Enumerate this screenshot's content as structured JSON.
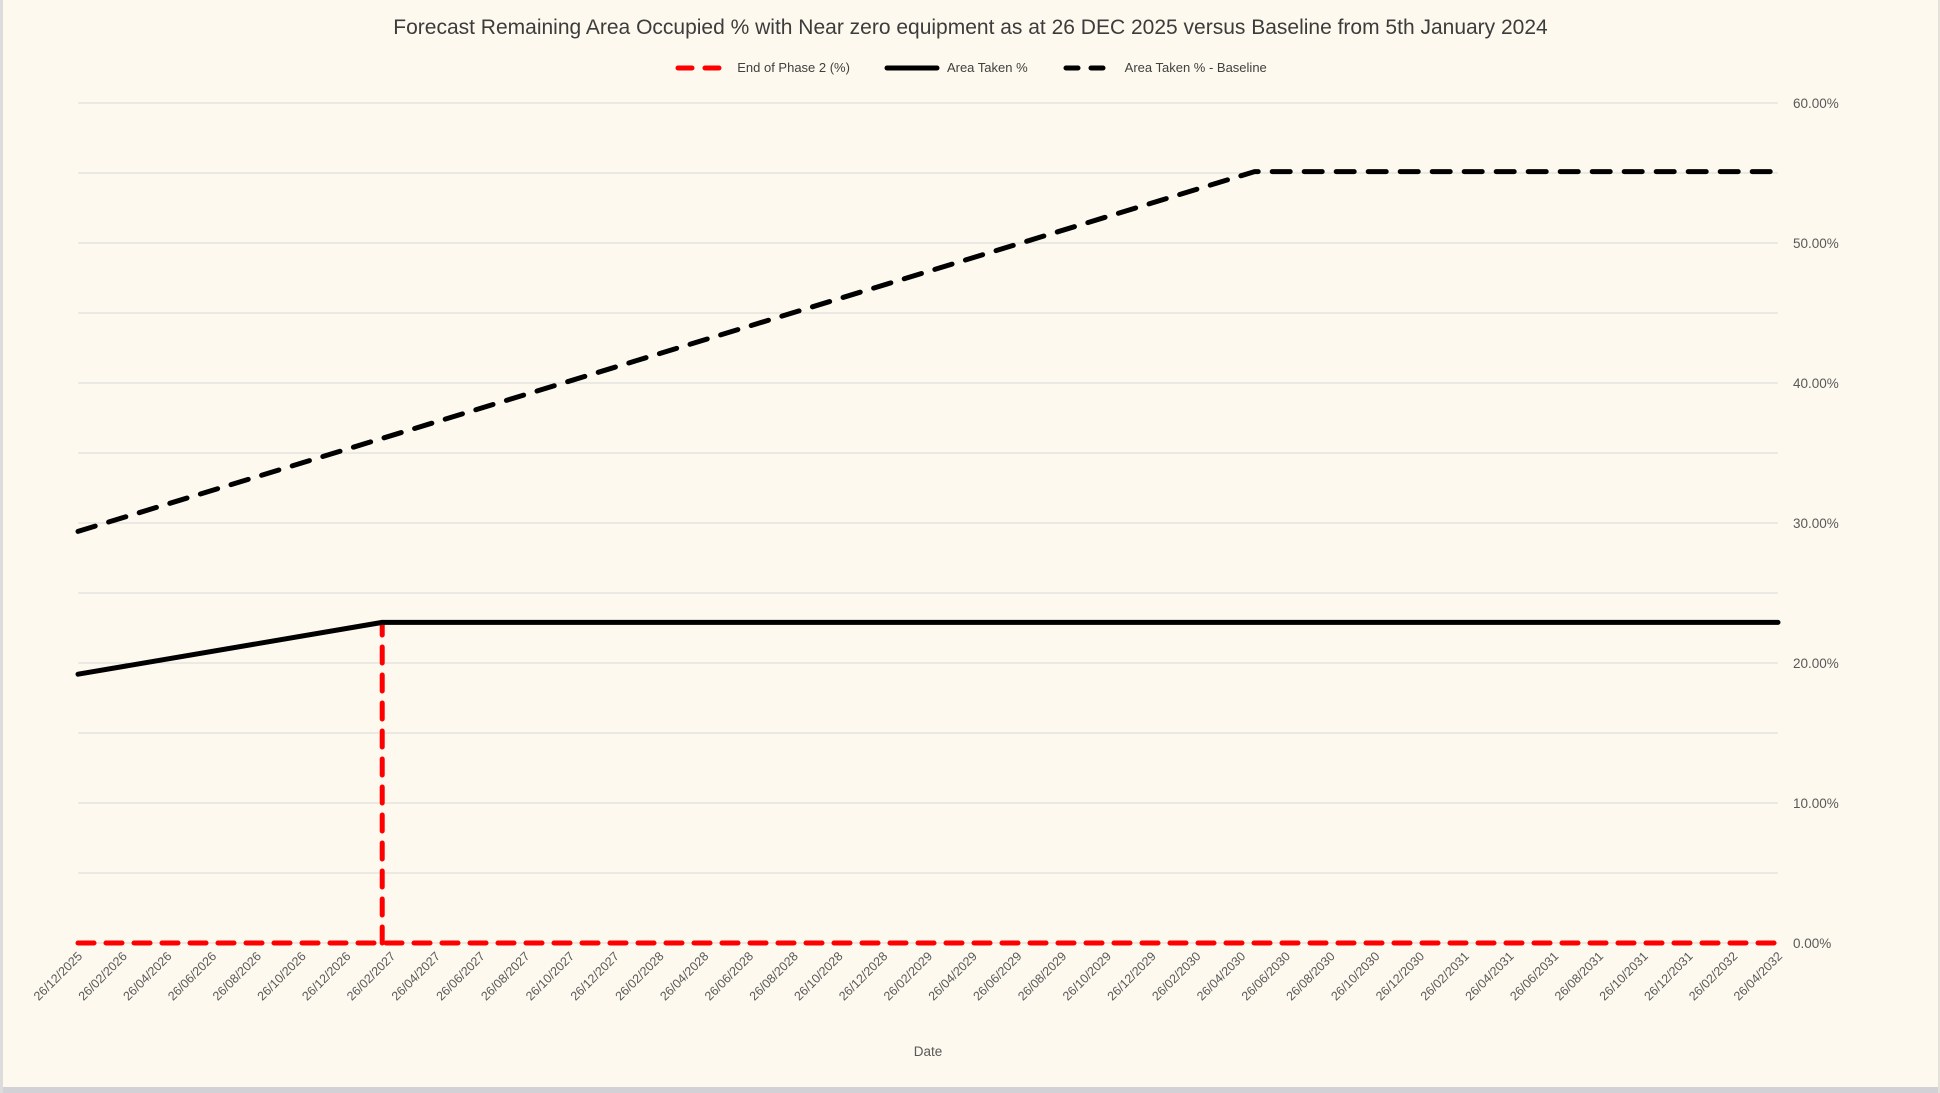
{
  "title": "Forecast Remaining Area Occupied % with Near zero equipment as at 26 DEC 2025 versus Baseline from 5th January 2024",
  "legend": [
    {
      "label": "End of Phase 2 (%)",
      "color": "#FF0000",
      "style": "dashed",
      "swatch_dash": "14 13"
    },
    {
      "label": "Area Taken %",
      "color": "#000000",
      "style": "solid",
      "swatch_dash": "none"
    },
    {
      "label": "Area Taken % - Baseline",
      "color": "#000000",
      "style": "dashed",
      "swatch_dash": "12 13"
    }
  ],
  "colors": {
    "background": "#FDF9EE",
    "gridline": "#D9D9D9",
    "axis_text": "#595959",
    "title_text": "#3C3C3C"
  },
  "chart_data": {
    "type": "line",
    "title": "Forecast Remaining Area Occupied % with Near zero equipment as at 26 DEC 2025 versus Baseline from 5th January 2024",
    "x_axis_title": "Date",
    "legend_position": "top",
    "grid": true,
    "categories": [
      "26/12/2025",
      "26/02/2026",
      "26/04/2026",
      "26/06/2026",
      "26/08/2026",
      "26/10/2026",
      "26/12/2026",
      "26/02/2027",
      "26/04/2027",
      "26/06/2027",
      "26/08/2027",
      "26/10/2027",
      "26/12/2027",
      "26/02/2028",
      "26/04/2028",
      "26/06/2028",
      "26/08/2028",
      "26/10/2028",
      "26/12/2028",
      "26/02/2029",
      "26/04/2029",
      "26/06/2029",
      "26/08/2029",
      "26/10/2029",
      "26/12/2029",
      "26/02/2030",
      "26/04/2030",
      "26/06/2030",
      "26/08/2030",
      "26/10/2030",
      "26/12/2030",
      "26/02/2031",
      "26/04/2031",
      "26/06/2031",
      "26/08/2031",
      "26/10/2031",
      "26/12/2031",
      "26/02/2032",
      "26/04/2032"
    ],
    "y_axis": {
      "min": 0,
      "max": 60,
      "gridline_step": 5,
      "label_step": 10,
      "side": "right",
      "tick_labels": [
        "0.00%",
        "10.00%",
        "20.00%",
        "30.00%",
        "40.00%",
        "50.00%",
        "60.00%"
      ]
    },
    "series": [
      {
        "name": "End of Phase 2 (%)",
        "color": "#FF0000",
        "dash": "dashed",
        "dasharray": "16 12",
        "width": 5,
        "segments": [
          [
            [
              0,
              0
            ],
            [
              38,
              0
            ]
          ],
          [
            [
              6.8,
              0
            ],
            [
              6.8,
              22.9
            ]
          ]
        ]
      },
      {
        "name": "Area Taken %",
        "color": "#000000",
        "dash": "solid",
        "dasharray": "none",
        "width": 5,
        "segments": [
          [
            [
              0,
              19.2
            ],
            [
              6.8,
              22.9
            ],
            [
              38,
              22.9
            ]
          ]
        ]
      },
      {
        "name": "Area Taken % - Baseline",
        "color": "#000000",
        "dash": "dashed",
        "dasharray": "18 14",
        "width": 5,
        "segments": [
          [
            [
              0,
              29.4
            ],
            [
              26.3,
              55.1
            ],
            [
              38,
              55.1
            ]
          ]
        ]
      }
    ]
  }
}
